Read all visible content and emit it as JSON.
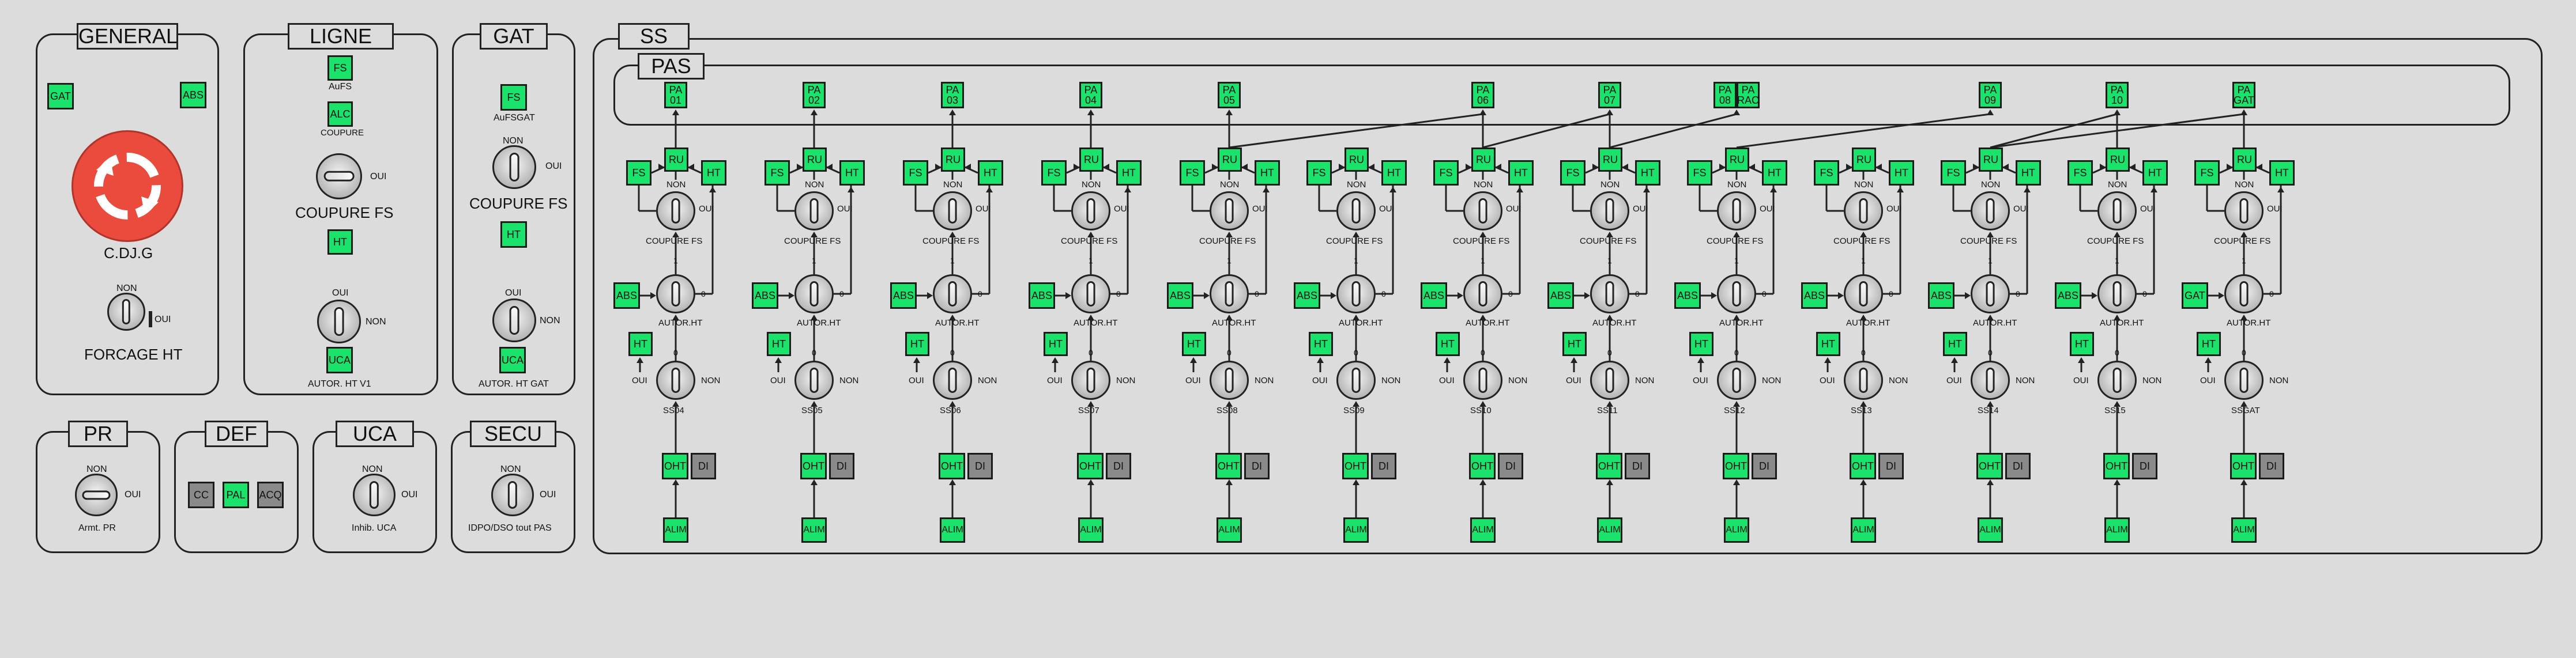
{
  "general": {
    "title": "GENERAL",
    "gat": "GAT",
    "abs": "ABS",
    "cdjg": "C.DJ.G",
    "non": "NON",
    "oui": "OUI",
    "forcage": "FORCAGE HT"
  },
  "ligne": {
    "title": "LIGNE",
    "fs": "FS",
    "aufs": "AuFS",
    "alc": "ALC",
    "coupure_small": "COUPURE",
    "oui": "OUI",
    "coupure_fs": "COUPURE FS",
    "ht": "HT",
    "oui2": "OUI",
    "non2": "NON",
    "uca": "UCA",
    "autor": "AUTOR. HT V1"
  },
  "gat": {
    "title": "GAT",
    "fs": "FS",
    "aufsgat": "AuFSGAT",
    "non": "NON",
    "oui": "OUI",
    "coupure_fs": "COUPURE FS",
    "ht": "HT",
    "oui2": "OUI",
    "non2": "NON",
    "uca": "UCA",
    "autor": "AUTOR. HT GAT"
  },
  "pr": {
    "title": "PR",
    "non": "NON",
    "oui": "OUI",
    "label": "Armt. PR"
  },
  "def": {
    "title": "DEF",
    "cc": "CC",
    "pal": "PAL",
    "acq": "ACQ"
  },
  "uca": {
    "title": "UCA",
    "non": "NON",
    "oui": "OUI",
    "label": "Inhib. UCA"
  },
  "secu": {
    "title": "SECU",
    "non": "NON",
    "oui": "OUI",
    "label": "IDPO/DSO tout PAS"
  },
  "ss": {
    "title": "SS",
    "pas_title": "PAS",
    "common": {
      "fs": "FS",
      "ru": "RU",
      "ht": "HT",
      "non": "NON",
      "oui": "OUI",
      "coupure": "COUPURE FS",
      "one": "1",
      "zero": "0",
      "autor": "AUTOR.HT",
      "ht2": "HT",
      "oui2": "OUI",
      "zero2": "0",
      "non2": "NON",
      "oht": "OHT",
      "di": "DI",
      "alim": "ALIM"
    },
    "columns": [
      {
        "ss": "SS04",
        "abs": "ABS",
        "pas": [
          {
            "t": "PA\n01"
          }
        ]
      },
      {
        "ss": "SS05",
        "abs": "ABS",
        "pas": [
          {
            "t": "PA\n02"
          }
        ]
      },
      {
        "ss": "SS06",
        "abs": "ABS",
        "pas": [
          {
            "t": "PA\n03"
          }
        ]
      },
      {
        "ss": "SS07",
        "abs": "ABS",
        "pas": [
          {
            "t": "PA\n04"
          }
        ]
      },
      {
        "ss": "SS08",
        "abs": "ABS",
        "pas": [
          {
            "t": "PA\n05"
          }
        ]
      },
      {
        "ss": "SS09",
        "abs": "ABS",
        "pas": []
      },
      {
        "ss": "SS10",
        "abs": "ABS",
        "pas": [
          {
            "t": "PA\n06"
          }
        ]
      },
      {
        "ss": "SS11",
        "abs": "ABS",
        "pas": [
          {
            "t": "PA\n07"
          }
        ]
      },
      {
        "ss": "SS12",
        "abs": "ABS",
        "pas": [
          {
            "t": "PA\n08"
          },
          {
            "t": "PA\nRAC"
          }
        ]
      },
      {
        "ss": "SS13",
        "abs": "ABS",
        "pas": []
      },
      {
        "ss": "SS14",
        "abs": "ABS",
        "pas": [
          {
            "t": "PA\n09"
          }
        ]
      },
      {
        "ss": "SS15",
        "abs": "ABS",
        "pas": [
          {
            "t": "PA\n10"
          }
        ]
      },
      {
        "ss": "SSGAT",
        "abs": "GAT",
        "pas": [
          {
            "t": "PA\nGAT"
          }
        ]
      }
    ]
  }
}
